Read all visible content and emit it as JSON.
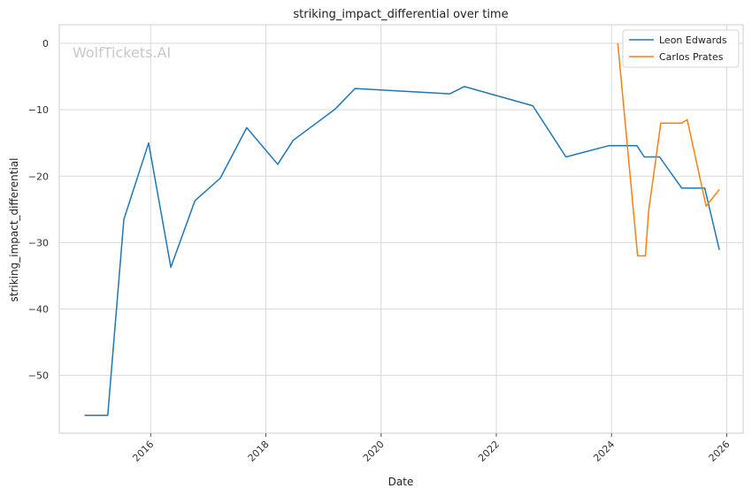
{
  "watermark": "WolfTickets.AI",
  "chart_data": {
    "type": "line",
    "title": "striking_impact_differential over time",
    "xlabel": "Date",
    "ylabel": "striking_impact_differential",
    "xlim": [
      "2014-06-01",
      "2026-04-15"
    ],
    "ylim": [
      -58.7,
      2.8
    ],
    "x_ticks": [
      "2016",
      "2018",
      "2020",
      "2022",
      "2024",
      "2026"
    ],
    "y_ticks": [
      0,
      -10,
      -20,
      -30,
      -40,
      -50
    ],
    "y_tick_labels": [
      "0",
      "−10",
      "−20",
      "−30",
      "−40",
      "−50"
    ],
    "grid": true,
    "legend_position": "top-right",
    "series": [
      {
        "name": "Leon Edwards",
        "color": "#1f77b4",
        "points": [
          {
            "x": "2014-11-08",
            "y": -56
          },
          {
            "x": "2015-04-04",
            "y": -56
          },
          {
            "x": "2015-07-15",
            "y": -26.5
          },
          {
            "x": "2015-12-19",
            "y": -15
          },
          {
            "x": "2016-05-08",
            "y": -33.7
          },
          {
            "x": "2016-10-08",
            "y": -23.7
          },
          {
            "x": "2017-03-18",
            "y": -20.3
          },
          {
            "x": "2017-09-02",
            "y": -12.7
          },
          {
            "x": "2018-03-17",
            "y": -18.2
          },
          {
            "x": "2018-06-23",
            "y": -14.6
          },
          {
            "x": "2019-03-16",
            "y": -9.9
          },
          {
            "x": "2019-07-20",
            "y": -6.8
          },
          {
            "x": "2021-03-13",
            "y": -7.6
          },
          {
            "x": "2021-06-12",
            "y": -6.5
          },
          {
            "x": "2022-08-20",
            "y": -9.4
          },
          {
            "x": "2023-03-18",
            "y": -17.1
          },
          {
            "x": "2023-12-16",
            "y": -15.4
          },
          {
            "x": "2024-06-10",
            "y": -15.4
          },
          {
            "x": "2024-07-27",
            "y": -17.1
          },
          {
            "x": "2024-11-01",
            "y": -17.1
          },
          {
            "x": "2025-03-22",
            "y": -21.8
          },
          {
            "x": "2025-08-15",
            "y": -21.8
          },
          {
            "x": "2025-11-15",
            "y": -31.1
          }
        ]
      },
      {
        "name": "Carlos Prates",
        "color": "#ff7f0e",
        "points": [
          {
            "x": "2024-02-10",
            "y": 0
          },
          {
            "x": "2024-06-15",
            "y": -32
          },
          {
            "x": "2024-08-03",
            "y": -32
          },
          {
            "x": "2024-08-24",
            "y": -25.2
          },
          {
            "x": "2024-11-09",
            "y": -12
          },
          {
            "x": "2025-03-22",
            "y": -12
          },
          {
            "x": "2025-04-26",
            "y": -11.5
          },
          {
            "x": "2025-08-23",
            "y": -24.5
          },
          {
            "x": "2025-11-15",
            "y": -22
          }
        ]
      }
    ]
  }
}
